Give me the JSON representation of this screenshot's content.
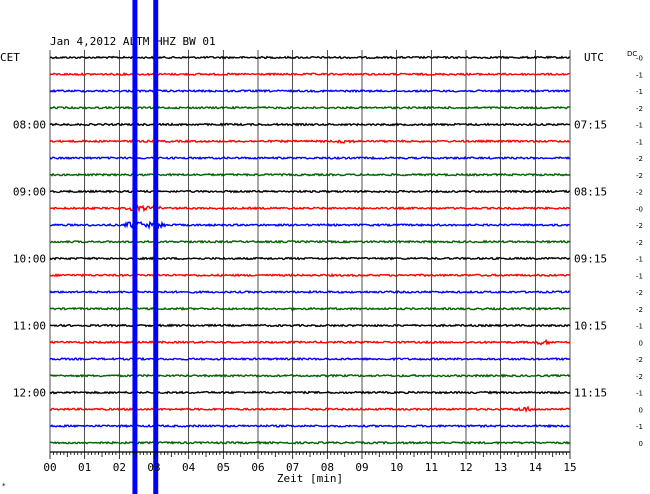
{
  "chart_data": {
    "type": "line",
    "title": "Jan 4,2012   ALTM HHZ BW 01",
    "left_axis_label": "CET",
    "right_axis_label": "UTC",
    "corner_label": "DC",
    "bottom_left_mark": "*",
    "xlabel": "Zeit [min]",
    "x_ticks": [
      "00",
      "01",
      "02",
      "03",
      "04",
      "05",
      "06",
      "07",
      "08",
      "09",
      "10",
      "11",
      "12",
      "13",
      "14",
      "15"
    ],
    "xlim": [
      0,
      15
    ],
    "trace_count": 24,
    "trace_color_cycle": [
      "#000000",
      "#ff0000",
      "#0000ff",
      "#006400"
    ],
    "left_time_labels": [
      {
        "trace": 4,
        "label": "08:00"
      },
      {
        "trace": 8,
        "label": "09:00"
      },
      {
        "trace": 12,
        "label": "10:00"
      },
      {
        "trace": 16,
        "label": "11:00"
      },
      {
        "trace": 20,
        "label": "12:00"
      }
    ],
    "right_time_labels": [
      {
        "trace": 4,
        "label": "07:15"
      },
      {
        "trace": 8,
        "label": "08:15"
      },
      {
        "trace": 12,
        "label": "09:15"
      },
      {
        "trace": 16,
        "label": "10:15"
      },
      {
        "trace": 20,
        "label": "11:15"
      }
    ],
    "dc_offsets": [
      "-0",
      "-1",
      "-1",
      "-2",
      "-1",
      "-1",
      "-2",
      "-2",
      "-2",
      "-0",
      "-2",
      "-2",
      "-1",
      "-1",
      "-2",
      "-2",
      "-1",
      "0",
      "-2",
      "-2",
      "-1",
      "0",
      "-1",
      "0"
    ],
    "events": [
      {
        "trace": 10,
        "minute": 2.45,
        "amplitude": 4
      },
      {
        "trace": 10,
        "minute": 3.05,
        "amplitude": 4
      },
      {
        "trace": 9,
        "minute": 2.5,
        "amplitude": 2.5
      },
      {
        "trace": 9,
        "minute": 3.0,
        "amplitude": 2.5
      },
      {
        "trace": 17,
        "minute": 14.2,
        "amplitude": 1.8
      },
      {
        "trace": 21,
        "minute": 13.7,
        "amplitude": 1.8
      },
      {
        "trace": 5,
        "minute": 8.5,
        "amplitude": 1.2
      }
    ],
    "vertical_markers": [
      {
        "minute": 2.45,
        "color": "#0000ff"
      },
      {
        "minute": 3.05,
        "color": "#0000ff"
      }
    ],
    "grid": true
  }
}
